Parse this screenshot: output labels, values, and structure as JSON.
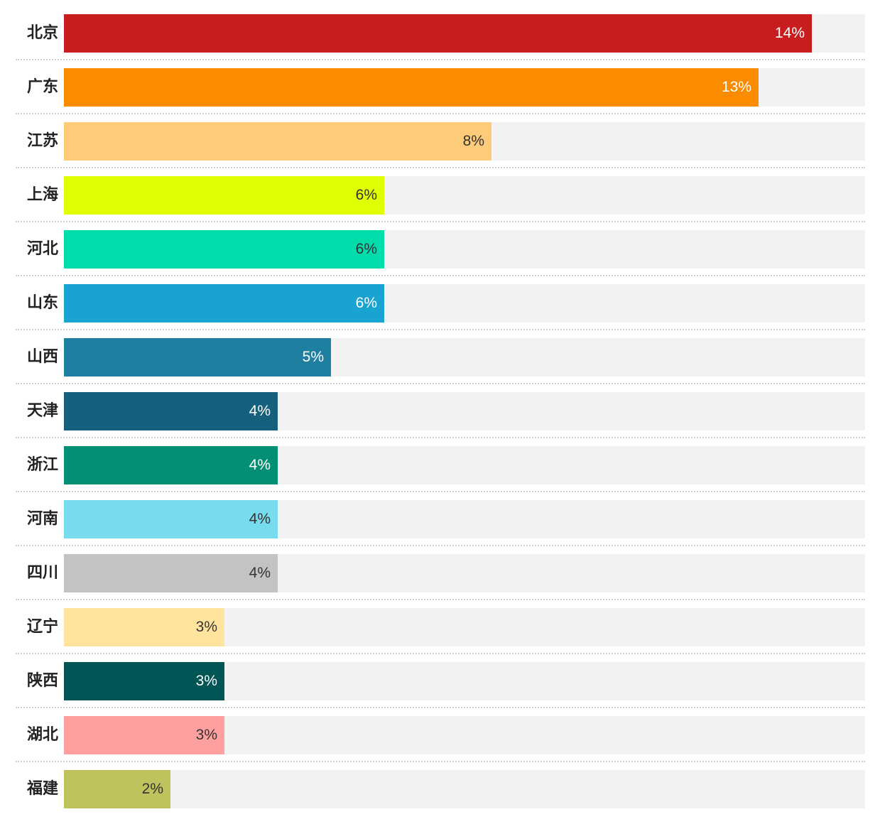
{
  "chart_data": {
    "type": "bar",
    "orientation": "horizontal",
    "categories": [
      "北京",
      "广东",
      "江苏",
      "上海",
      "河北",
      "山东",
      "山西",
      "天津",
      "浙江",
      "河南",
      "四川",
      "辽宁",
      "陕西",
      "湖北",
      "福建"
    ],
    "values": [
      14,
      13,
      8,
      6,
      6,
      6,
      5,
      4,
      4,
      4,
      4,
      3,
      3,
      3,
      2
    ],
    "value_labels": [
      "14%",
      "13%",
      "8%",
      "6%",
      "6%",
      "6%",
      "5%",
      "4%",
      "4%",
      "4%",
      "4%",
      "3%",
      "3%",
      "3%",
      "2%"
    ],
    "colors": [
      "#c81d1f",
      "#fb8c00",
      "#fecb7a",
      "#e0ff00",
      "#00ddab",
      "#19a3d0",
      "#1e7fa1",
      "#15607c",
      "#038f73",
      "#76dcee",
      "#c3c3c3",
      "#ffe49e",
      "#015555",
      "#ffa0a0",
      "#c0c25e"
    ],
    "label_colors": [
      "#ffffff",
      "#ffffff",
      "#333333",
      "#333333",
      "#333333",
      "#ffffff",
      "#ffffff",
      "#ffffff",
      "#ffffff",
      "#333333",
      "#333333",
      "#333333",
      "#ffffff",
      "#333333",
      "#333333"
    ],
    "xlim": [
      0,
      15
    ],
    "title": "",
    "xlabel": "",
    "ylabel": "",
    "grid": false,
    "legend": "none"
  }
}
